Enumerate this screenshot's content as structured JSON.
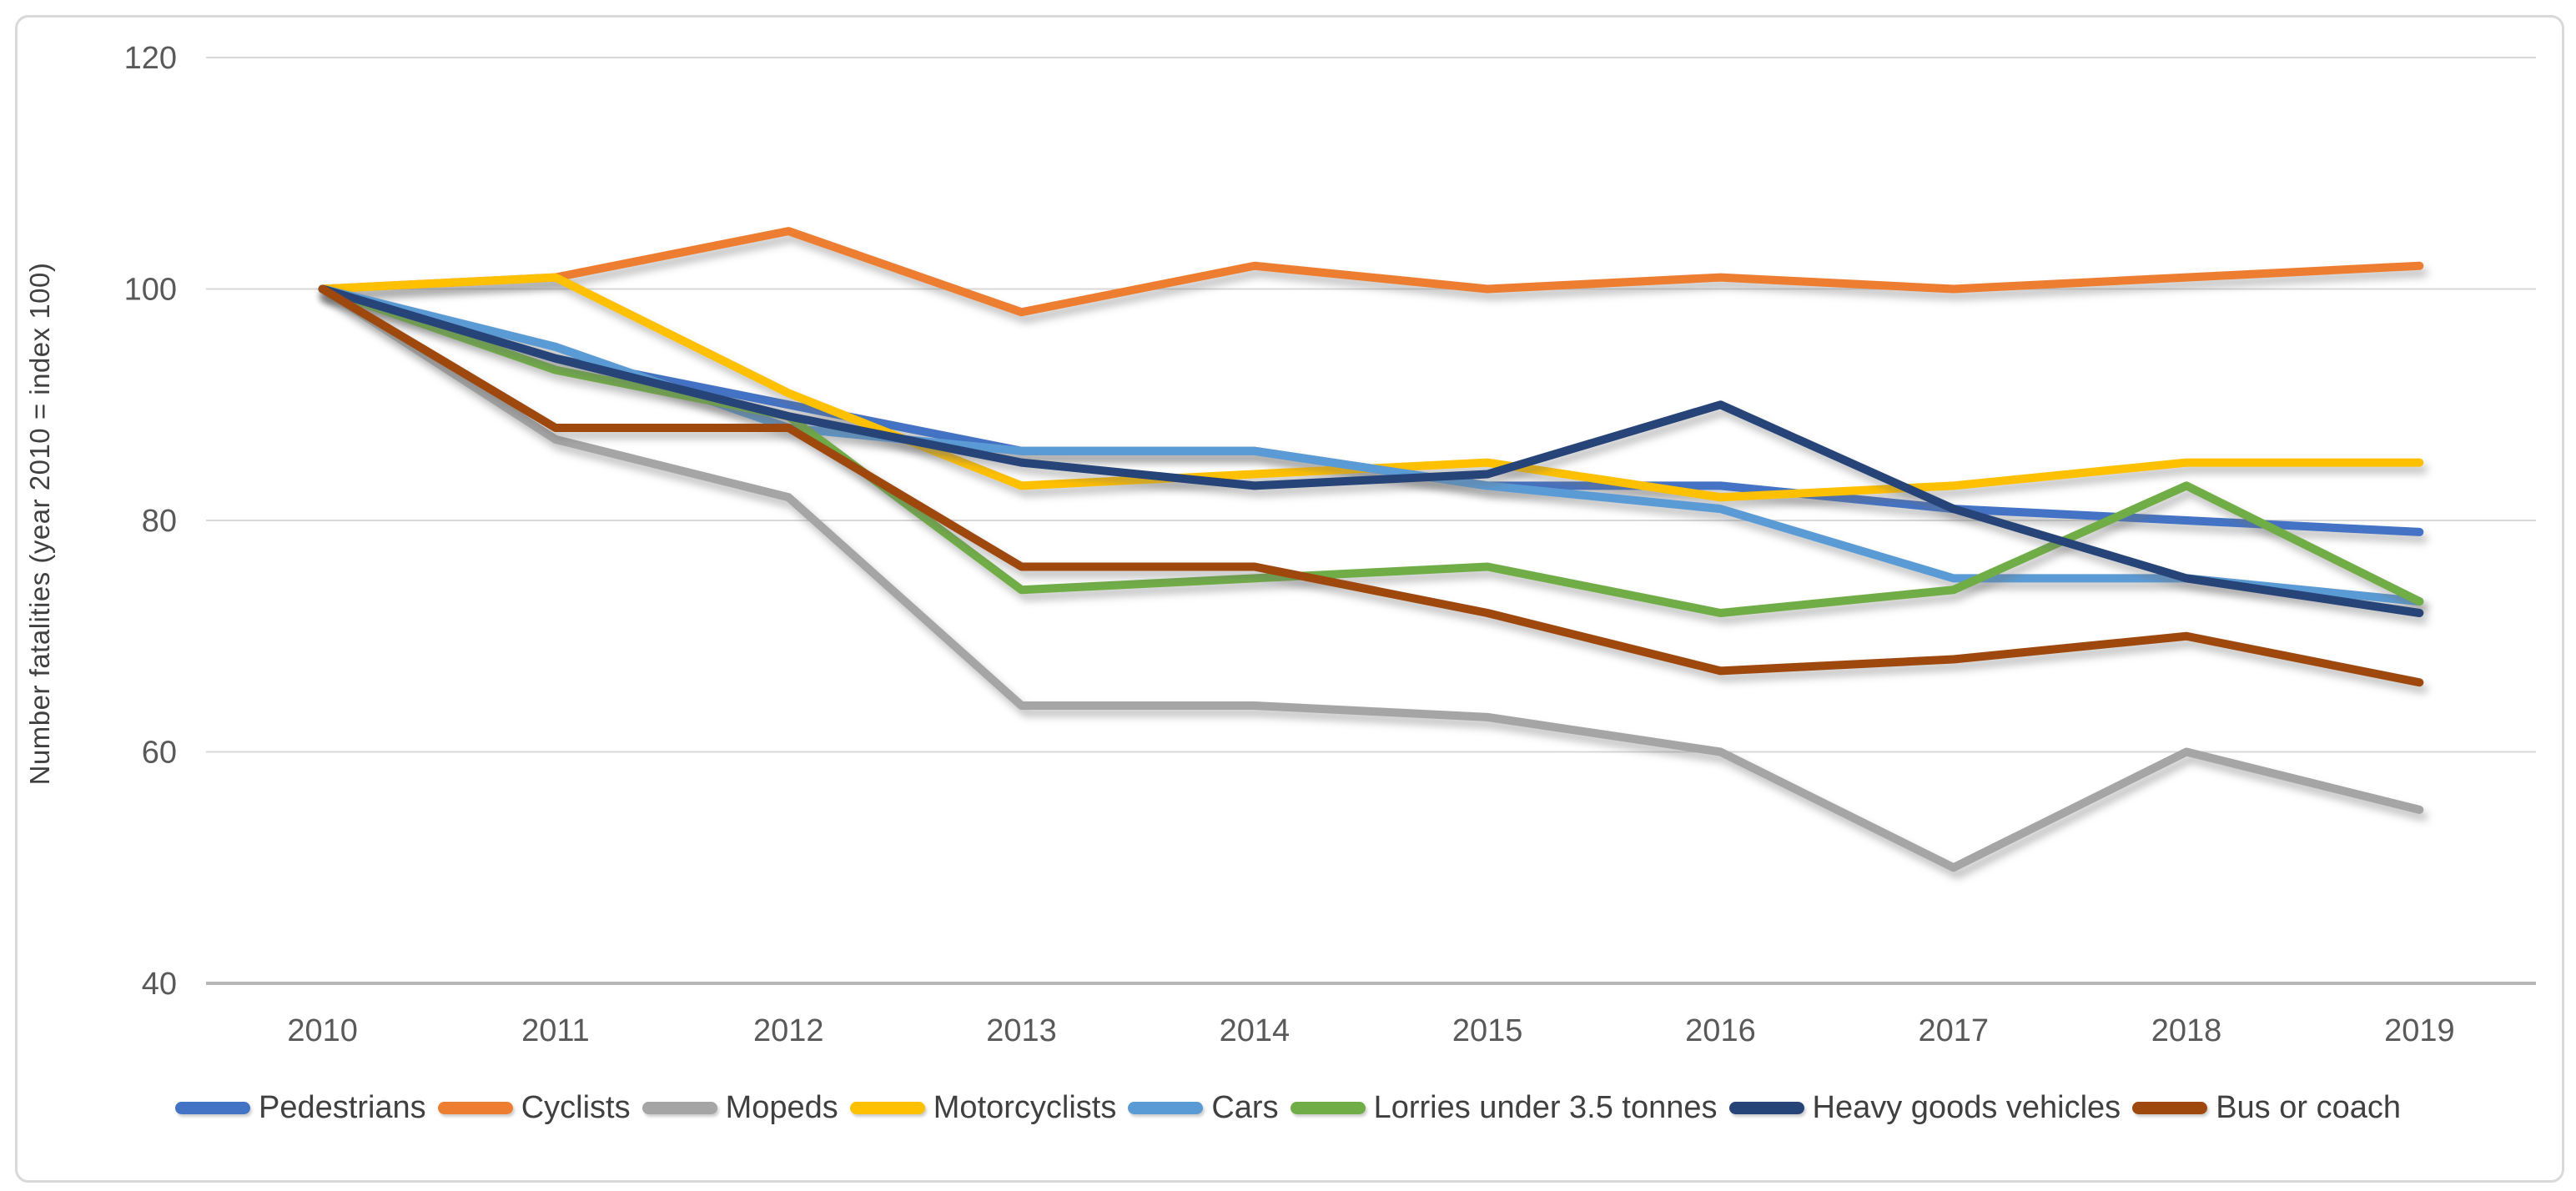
{
  "chart_data": {
    "type": "line",
    "title": "",
    "xlabel": "",
    "ylabel": "Number fatalities (year 2010 = index 100)",
    "ylim": [
      40,
      120
    ],
    "yticks": [
      40,
      60,
      80,
      100,
      120
    ],
    "grid": "horizontal",
    "legend_position": "bottom",
    "categories": [
      "2010",
      "2011",
      "2012",
      "2013",
      "2014",
      "2015",
      "2016",
      "2017",
      "2018",
      "2019"
    ],
    "series": [
      {
        "name": "Pedestrians",
        "color": "#4472C4",
        "values": [
          100,
          94,
          90,
          86,
          86,
          83,
          83,
          81,
          80,
          79
        ]
      },
      {
        "name": "Cyclists",
        "color": "#ED7D31",
        "values": [
          100,
          101,
          105,
          98,
          102,
          100,
          101,
          100,
          101,
          102
        ]
      },
      {
        "name": "Mopeds",
        "color": "#A5A5A5",
        "values": [
          100,
          87,
          82,
          64,
          64,
          63,
          60,
          50,
          60,
          55
        ]
      },
      {
        "name": "Motorcyclists",
        "color": "#FFC000",
        "values": [
          100,
          101,
          91,
          83,
          84,
          85,
          82,
          83,
          85,
          85
        ]
      },
      {
        "name": "Cars",
        "color": "#5B9BD5",
        "values": [
          100,
          95,
          88,
          86,
          86,
          83,
          81,
          75,
          75,
          73
        ]
      },
      {
        "name": "Lorries under 3.5 tonnes",
        "color": "#70AD47",
        "values": [
          100,
          93,
          89,
          74,
          75,
          76,
          72,
          74,
          83,
          73
        ]
      },
      {
        "name": "Heavy goods vehicles",
        "color": "#264478",
        "values": [
          100,
          94,
          89,
          85,
          83,
          84,
          90,
          81,
          75,
          72
        ]
      },
      {
        "name": "Bus or coach",
        "color": "#9E480E",
        "values": [
          100,
          88,
          88,
          76,
          76,
          72,
          67,
          68,
          70,
          66
        ]
      }
    ]
  }
}
